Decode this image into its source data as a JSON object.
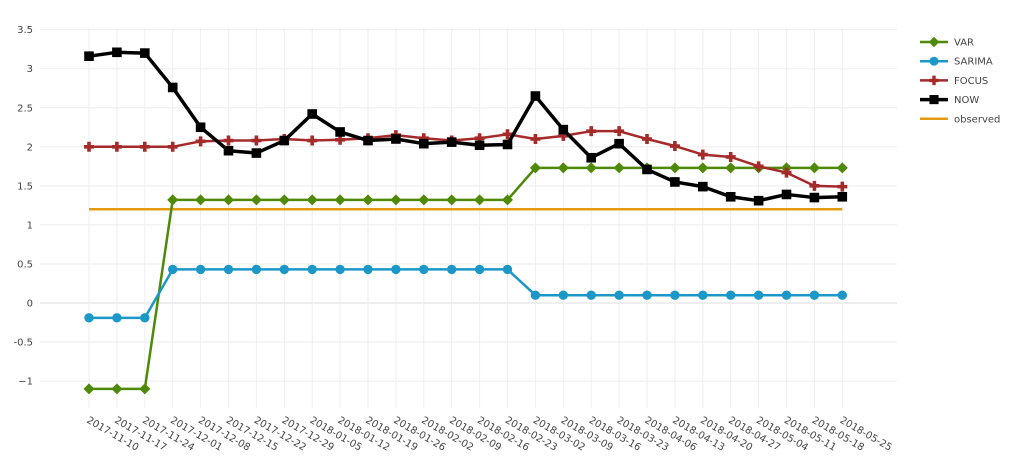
{
  "chart_data": {
    "type": "line",
    "title": "",
    "xlabel": "",
    "ylabel": "",
    "x": [
      "2017-11-10",
      "2017-11-17",
      "2017-11-24",
      "2017-12-01",
      "2017-12-08",
      "2017-12-15",
      "2017-12-22",
      "2017-12-29",
      "2018-01-05",
      "2018-01-12",
      "2018-01-19",
      "2018-01-26",
      "2018-02-02",
      "2018-02-09",
      "2018-02-16",
      "2018-02-23",
      "2018-03-02",
      "2018-03-09",
      "2018-03-16",
      "2018-03-23",
      "2018-04-06",
      "2018-04-13",
      "2018-04-20",
      "2018-04-27",
      "2018-05-04",
      "2018-05-11",
      "2018-05-18",
      "2018-05-25"
    ],
    "y_ticks": [
      "3.5",
      "3",
      "2.5",
      "2",
      "1.5",
      "1",
      "0.5",
      "0",
      "-0.5",
      "−1"
    ],
    "ylim": [
      -1.35,
      3.55
    ],
    "grid": true,
    "legend_position": "top-right",
    "series": [
      {
        "name": "VAR",
        "color": "#4e8a07",
        "marker": "diamond",
        "values": [
          -1.1,
          -1.1,
          -1.1,
          1.32,
          1.32,
          1.32,
          1.32,
          1.32,
          1.32,
          1.32,
          1.32,
          1.32,
          1.32,
          1.32,
          1.32,
          1.32,
          1.73,
          1.73,
          1.73,
          1.73,
          1.73,
          1.73,
          1.73,
          1.73,
          1.73,
          1.73,
          1.73,
          1.73
        ]
      },
      {
        "name": "SARIMA",
        "color": "#1b98c8",
        "marker": "circle",
        "values": [
          -0.19,
          -0.19,
          -0.19,
          0.43,
          0.43,
          0.43,
          0.43,
          0.43,
          0.43,
          0.43,
          0.43,
          0.43,
          0.43,
          0.43,
          0.43,
          0.43,
          0.1,
          0.1,
          0.1,
          0.1,
          0.1,
          0.1,
          0.1,
          0.1,
          0.1,
          0.1,
          0.1,
          0.1
        ]
      },
      {
        "name": "FOCUS",
        "color": "#a52a2a",
        "marker": "cross",
        "values": [
          2.0,
          2.0,
          2.0,
          2.0,
          2.07,
          2.08,
          2.08,
          2.1,
          2.08,
          2.09,
          2.11,
          2.15,
          2.11,
          2.08,
          2.11,
          2.16,
          2.1,
          2.14,
          2.2,
          2.2,
          2.1,
          2.01,
          1.9,
          1.87,
          1.75,
          1.67,
          1.5,
          1.49
        ]
      },
      {
        "name": "NOW",
        "color": "#000000",
        "marker": "square",
        "values": [
          3.16,
          3.21,
          3.2,
          2.76,
          2.25,
          1.95,
          1.92,
          2.08,
          2.42,
          2.19,
          2.08,
          2.1,
          2.04,
          2.06,
          2.02,
          2.03,
          2.65,
          2.22,
          1.86,
          2.04,
          1.71,
          1.55,
          1.49,
          1.36,
          1.31,
          1.39,
          1.35,
          1.36
        ]
      },
      {
        "name": "observed",
        "color": "#e49b0f",
        "marker": "none",
        "values": [
          1.2,
          1.2,
          1.2,
          1.2,
          1.2,
          1.2,
          1.2,
          1.2,
          1.2,
          1.2,
          1.2,
          1.2,
          1.2,
          1.2,
          1.2,
          1.2,
          1.2,
          1.2,
          1.2,
          1.2,
          1.2,
          1.2,
          1.2,
          1.2,
          1.2,
          1.2,
          1.2,
          1.2
        ]
      }
    ]
  }
}
